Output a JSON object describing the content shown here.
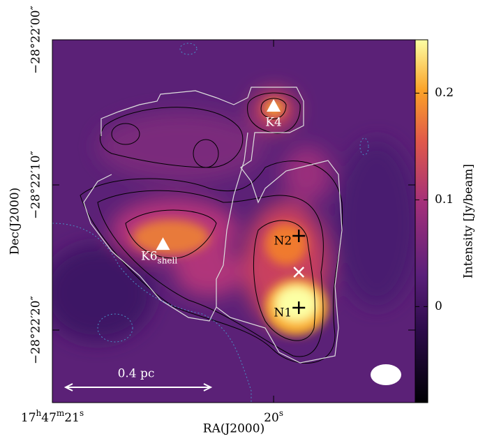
{
  "chart_data": {
    "type": "heatmap",
    "xlabel": "RA(J2000)",
    "ylabel": "Dec(J2000)",
    "xlim": [
      21,
      19.36
    ],
    "ylim": [
      0,
      25
    ],
    "xticks": [
      {
        "value": 21,
        "label": "17h47m21s"
      },
      {
        "value": 20,
        "label": "20s"
      }
    ],
    "yticks": [
      {
        "value": 0,
        "label": "−28°22′00″"
      },
      {
        "value": 10,
        "label": "−28°22′10″"
      },
      {
        "value": 20,
        "label": "−28°22′20″"
      }
    ],
    "colorbar": {
      "label": "Intensity [Jy/beam]",
      "clim": [
        -0.09,
        0.25
      ],
      "ticks": [
        0,
        0.1,
        0.2
      ]
    },
    "markers": [
      {
        "label": "K4",
        "x": 20.0,
        "y": 4.57,
        "symbol": "triangle",
        "color": "#ffffff"
      },
      {
        "label": "K6",
        "sublabel": "shell",
        "x": 20.5,
        "y": 14.09,
        "symbol": "triangle",
        "color": "#ffffff"
      },
      {
        "label": "N2",
        "x": 19.886,
        "y": 13.51,
        "symbol": "plus",
        "color": "#000000"
      },
      {
        "label": "N1",
        "x": 19.886,
        "y": 18.46,
        "symbol": "plus",
        "color": "#000000"
      },
      {
        "x": 19.886,
        "y": 16.01,
        "symbol": "cross",
        "color": "#ffffff"
      }
    ],
    "scale_bar": {
      "label": "0.4 pc"
    }
  }
}
